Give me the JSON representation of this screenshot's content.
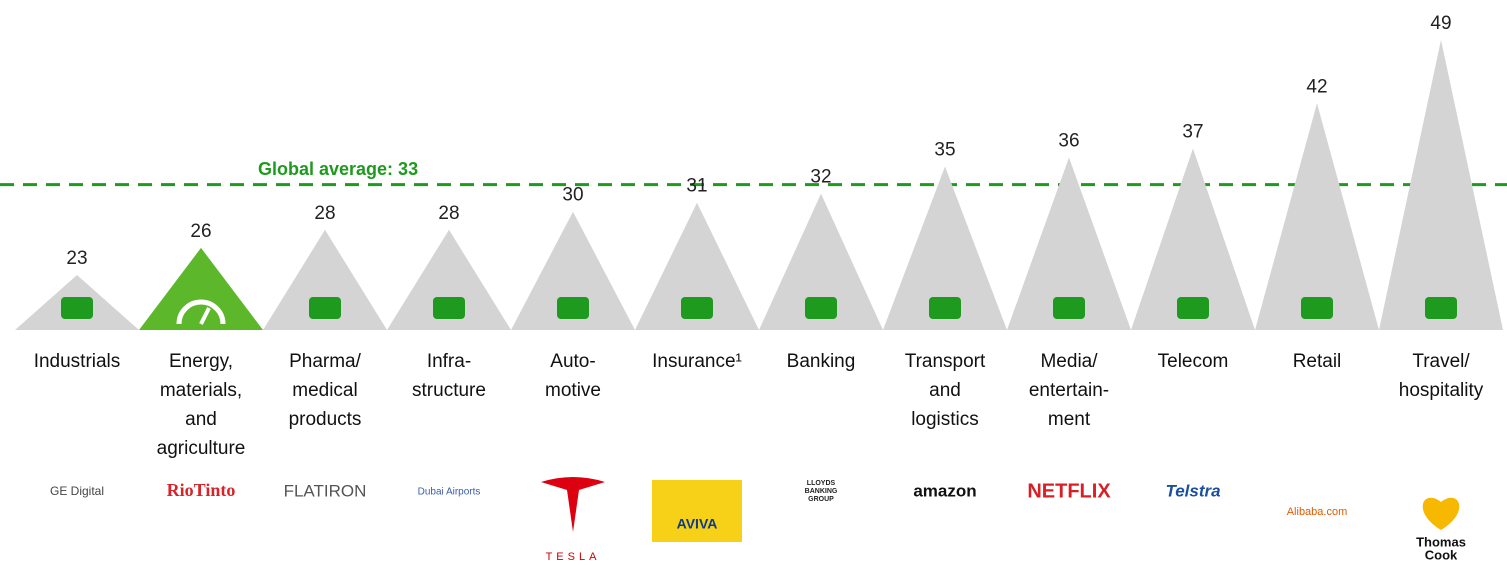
{
  "chart_data": {
    "type": "triangle",
    "categories": [
      [
        "Industrials"
      ],
      [
        "Energy,",
        "materials,",
        "and",
        "agriculture"
      ],
      [
        "Pharma/",
        "medical",
        "products"
      ],
      [
        "Infra-",
        "structure"
      ],
      [
        "Auto-",
        "motive"
      ],
      [
        "Insurance¹"
      ],
      [
        "Banking"
      ],
      [
        "Transport",
        "and",
        "logistics"
      ],
      [
        "Media/",
        "entertain-",
        "ment"
      ],
      [
        "Telecom"
      ],
      [
        "Retail"
      ],
      [
        "Travel/",
        "hospitality"
      ]
    ],
    "values": [
      23,
      26,
      28,
      28,
      30,
      31,
      32,
      35,
      36,
      37,
      42,
      49
    ],
    "colors": [
      "#d4d4d4",
      "#5cb82a",
      "#d4d4d4",
      "#d4d4d4",
      "#d4d4d4",
      "#d4d4d4",
      "#d4d4d4",
      "#d4d4d4",
      "#d4d4d4",
      "#d4d4d4",
      "#d4d4d4",
      "#d4d4d4"
    ],
    "icon_color": "#1e9a1e",
    "reference_line": {
      "label": "Global average: 33",
      "value": 33,
      "color": "#1e9a1e"
    },
    "logos": [
      [
        "GE Digital"
      ],
      [
        "RioTinto"
      ],
      [
        "FLATIRON"
      ],
      [
        "Dubai Airports"
      ],
      [
        "TESLA"
      ],
      [
        "AVIVA"
      ],
      [
        "LLOYDS",
        "BANKING",
        "GROUP"
      ],
      [
        "amazon"
      ],
      [
        "NETFLIX"
      ],
      [
        "Telstra"
      ],
      [
        "Alibaba.com"
      ],
      [
        "Thomas",
        "Cook"
      ]
    ]
  }
}
